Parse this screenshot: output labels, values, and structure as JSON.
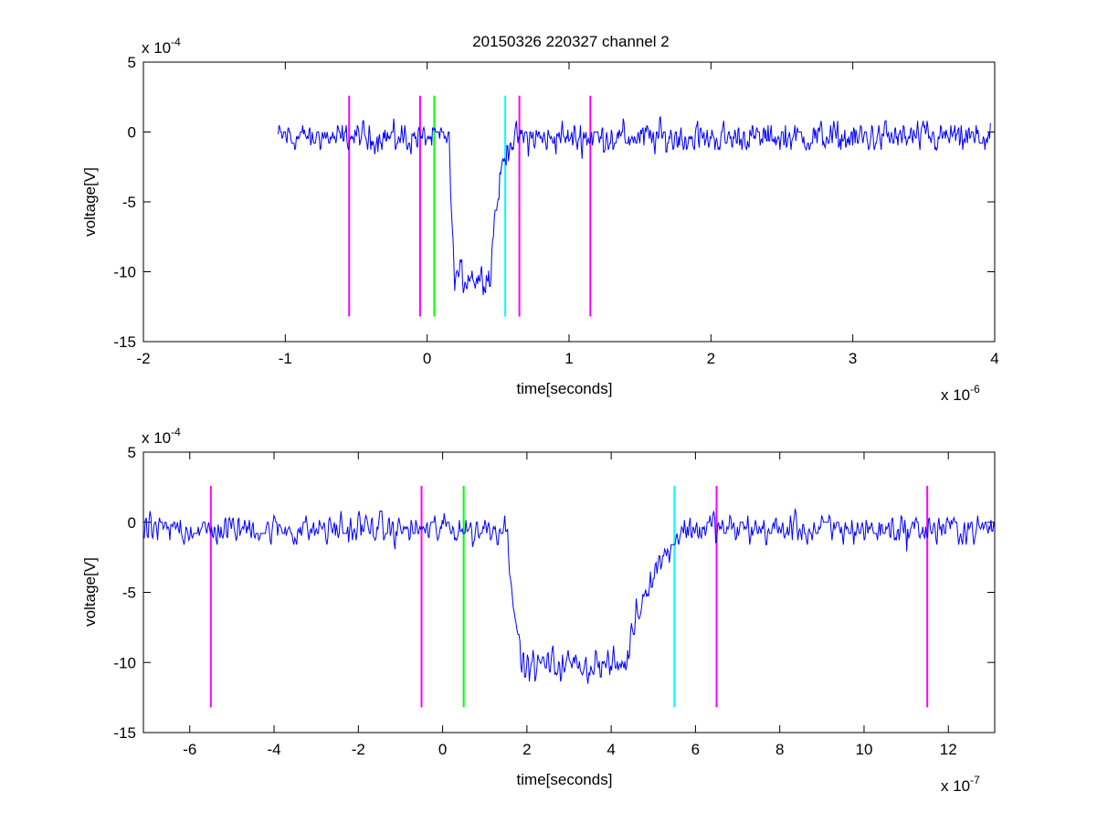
{
  "figure_title": "20150326 220327 channel 2",
  "chart_data": [
    {
      "type": "line",
      "title": "20150326 220327 channel 2",
      "xlabel": "time[seconds]",
      "ylabel": "voltage[V]",
      "x_exponent_label": "x 10",
      "x_exponent": "-6",
      "y_exponent_label": "x 10",
      "y_exponent": "-4",
      "xlim": [
        -2,
        4
      ],
      "ylim": [
        -15,
        5
      ],
      "xticks": [
        -2,
        -1,
        0,
        1,
        2,
        3,
        4
      ],
      "xtick_labels": [
        "-2",
        "-1",
        "0",
        "1",
        "2",
        "3",
        "4"
      ],
      "yticks": [
        5,
        0,
        -5,
        -10,
        -15
      ],
      "ytick_labels": [
        "5",
        "0",
        "-5",
        "-10",
        "-15"
      ],
      "grid": false,
      "series": [
        {
          "color": "#0000ff",
          "x_start": -1.05,
          "x_end": 3.97,
          "baseline": -0.4,
          "noise": 1.0,
          "pulse": {
            "x_fall": 0.15,
            "x_low_end": 0.45,
            "x_rise_end": 0.58,
            "low_level": -10.3
          }
        }
      ],
      "markers": [
        {
          "x": -0.55,
          "color": "#ff00ff"
        },
        {
          "x": -0.05,
          "color": "#ff00ff"
        },
        {
          "x": 0.05,
          "color": "#00ff00"
        },
        {
          "x": 0.55,
          "color": "#00ffff"
        },
        {
          "x": 0.65,
          "color": "#ff00ff"
        },
        {
          "x": 1.15,
          "color": "#ff00ff"
        }
      ],
      "marker_y_range": [
        -13.2,
        2.6
      ]
    },
    {
      "type": "line",
      "title": "",
      "xlabel": "time[seconds]",
      "ylabel": "voltage[V]",
      "x_exponent_label": "x 10",
      "x_exponent": "-7",
      "y_exponent_label": "x 10",
      "y_exponent": "-4",
      "xlim": [
        -7.1,
        13.1
      ],
      "ylim": [
        -15,
        5
      ],
      "xticks": [
        -6,
        -4,
        -2,
        0,
        2,
        4,
        6,
        8,
        10,
        12
      ],
      "xtick_labels": [
        "-6",
        "-4",
        "-2",
        "0",
        "2",
        "4",
        "6",
        "8",
        "10",
        "12"
      ],
      "yticks": [
        5,
        0,
        -5,
        -10,
        -15
      ],
      "ytick_labels": [
        "5",
        "0",
        "-5",
        "-10",
        "-15"
      ],
      "grid": false,
      "series": [
        {
          "color": "#0000ff",
          "x_start": -7.1,
          "x_end": 13.1,
          "baseline": -0.5,
          "noise": 1.0,
          "pulse": {
            "x_fall": 1.5,
            "x_low_end": 4.4,
            "x_rise_end": 5.7,
            "low_level": -10.2
          }
        }
      ],
      "markers": [
        {
          "x": -5.5,
          "color": "#ff00ff"
        },
        {
          "x": -0.5,
          "color": "#ff00ff"
        },
        {
          "x": 0.5,
          "color": "#00ff00"
        },
        {
          "x": 5.5,
          "color": "#00ffff"
        },
        {
          "x": 6.5,
          "color": "#ff00ff"
        },
        {
          "x": 11.5,
          "color": "#ff00ff"
        }
      ],
      "marker_y_range": [
        -13.2,
        2.6
      ]
    }
  ]
}
